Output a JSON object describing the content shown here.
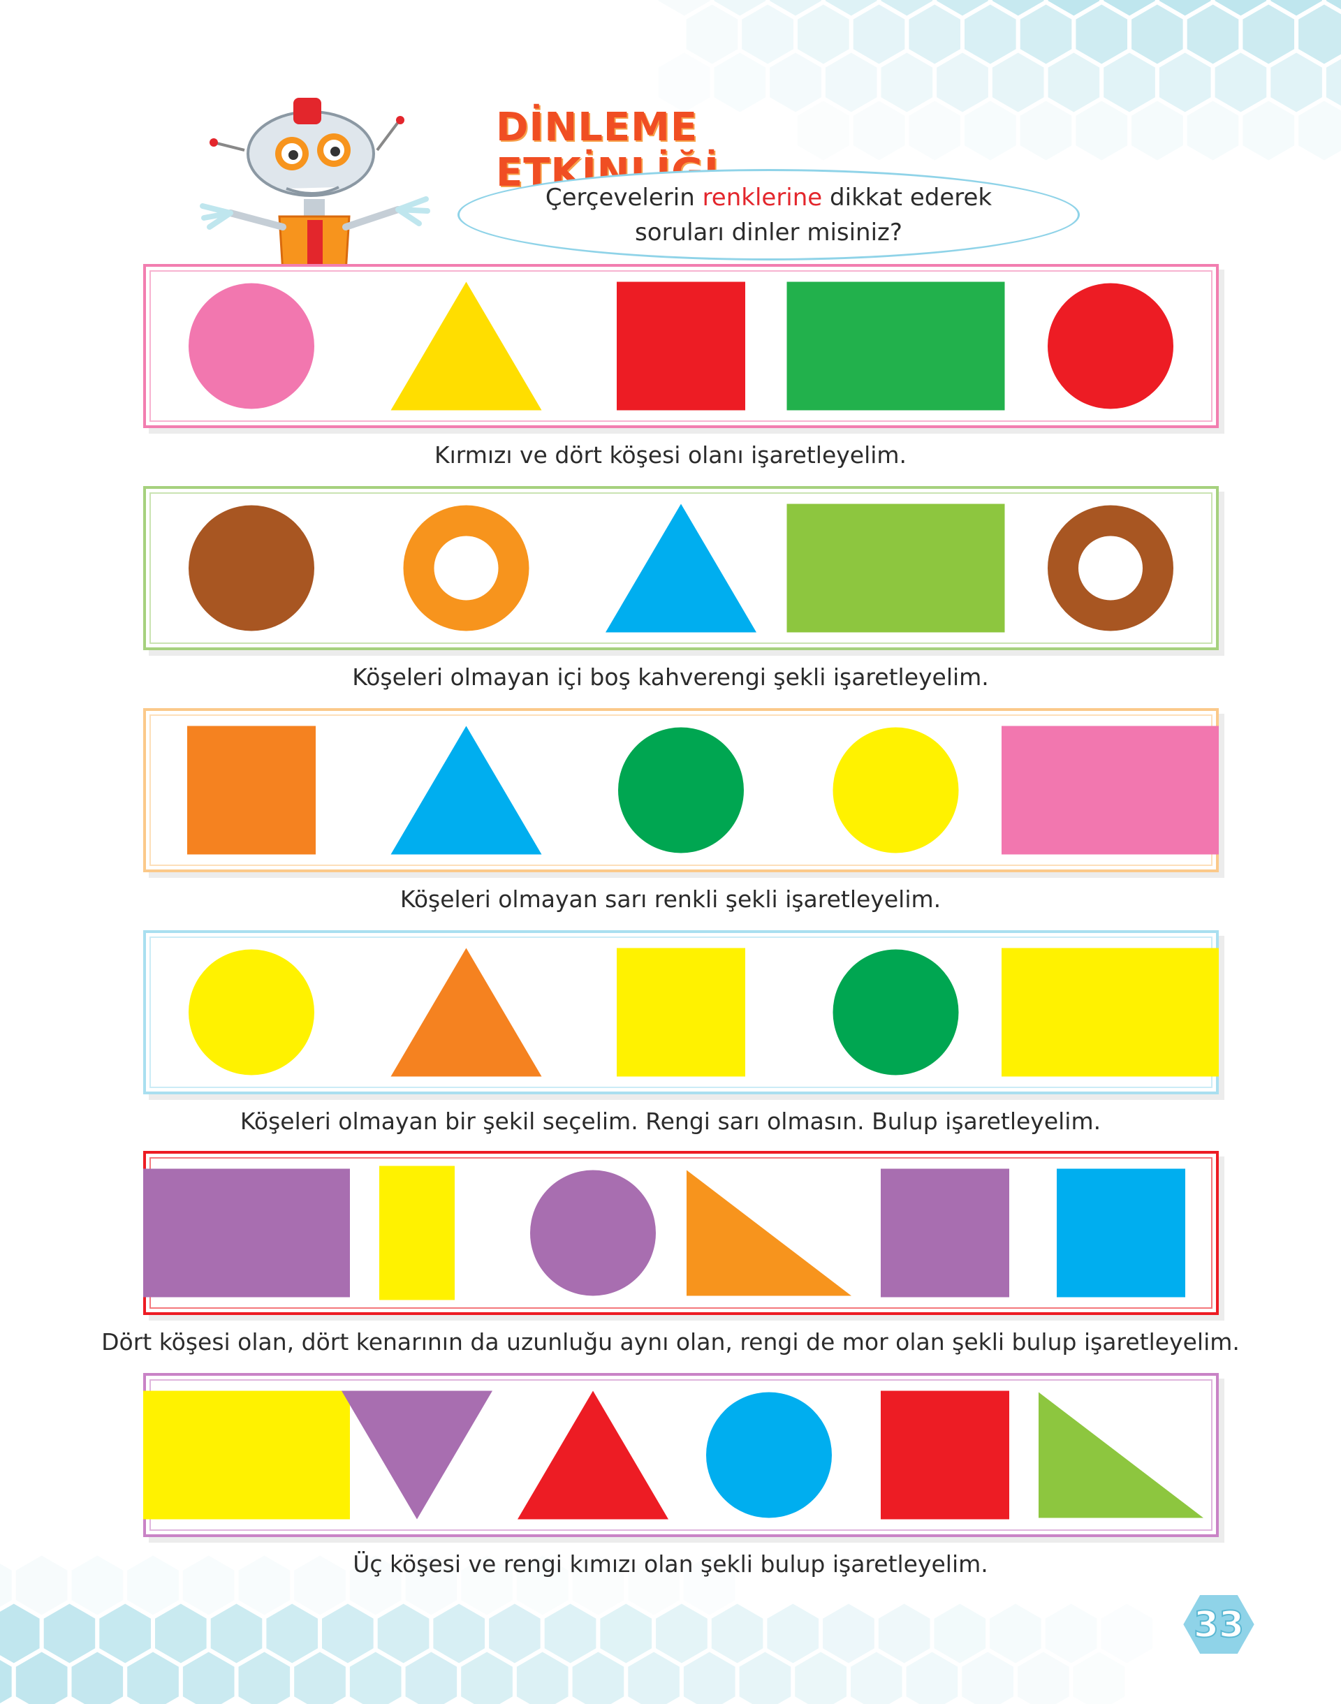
{
  "header": {
    "title": "DİNLEME ETKİNLİĞİ",
    "bubble_line1_before": "Çerçevelerin ",
    "bubble_line1_accent": "renklerine",
    "bubble_line1_after": " dikkat ederek",
    "bubble_line2": "soruları dinler misiniz?"
  },
  "colors": {
    "title": "#f04e23",
    "accent": "#e3262c",
    "hex_background": "#bfe6ee"
  },
  "rows": [
    {
      "frame_color": "#f27eb0",
      "question": "Kırmızı ve dört köşesi olanı işaretleyelim.",
      "shapes": [
        {
          "type": "circle",
          "color": "#f277af"
        },
        {
          "type": "triangle",
          "color": "#ffde00"
        },
        {
          "type": "square",
          "color": "#ed1c24"
        },
        {
          "type": "rectangle",
          "color": "#22b14c"
        },
        {
          "type": "circle",
          "color": "#ed1c24"
        }
      ]
    },
    {
      "frame_color": "#a6d17e",
      "question": "Köşeleri olmayan içi boş kahverengi şekli işaretleyelim.",
      "shapes": [
        {
          "type": "circle",
          "color": "#a85622"
        },
        {
          "type": "ring",
          "color": "#f7941d"
        },
        {
          "type": "triangle",
          "color": "#00aeef"
        },
        {
          "type": "rectangle",
          "color": "#8dc63f"
        },
        {
          "type": "ring",
          "color": "#a85622"
        }
      ]
    },
    {
      "frame_color": "#fbc98a",
      "question": "Köşeleri olmayan sarı renkli şekli işaretleyelim.",
      "shapes": [
        {
          "type": "square",
          "color": "#f58220"
        },
        {
          "type": "triangle",
          "color": "#00aeef"
        },
        {
          "type": "circle",
          "color": "#00a651"
        },
        {
          "type": "circle",
          "color": "#fff200"
        },
        {
          "type": "rectangle",
          "color": "#f277af"
        }
      ]
    },
    {
      "frame_color": "#a9dff0",
      "question": "Köşeleri olmayan bir şekil seçelim. Rengi sarı olmasın. Bulup işaretleyelim.",
      "shapes": [
        {
          "type": "circle",
          "color": "#fff200"
        },
        {
          "type": "triangle",
          "color": "#f58220"
        },
        {
          "type": "square",
          "color": "#fff200"
        },
        {
          "type": "circle",
          "color": "#00a651"
        },
        {
          "type": "rectangle",
          "color": "#fff200"
        }
      ]
    },
    {
      "frame_color": "#ed1c24",
      "question": "Dört köşesi olan, dört kenarının da uzunluğu aynı olan, rengi de mor olan şekli bulup işaretleyelim.",
      "shapes": [
        {
          "type": "rectangle",
          "color": "#a86eb0"
        },
        {
          "type": "tall-rectangle",
          "color": "#fff200"
        },
        {
          "type": "circle",
          "color": "#a86eb0"
        },
        {
          "type": "right-triangle",
          "color": "#f7941d"
        },
        {
          "type": "square",
          "color": "#a86eb0"
        },
        {
          "type": "square",
          "color": "#00aeef"
        }
      ]
    },
    {
      "frame_color": "#c983c6",
      "question": "Üç köşesi ve rengi kımızı olan şekli bulup işaretleyelim.",
      "shapes": [
        {
          "type": "rectangle",
          "color": "#fff200"
        },
        {
          "type": "inverted-triangle",
          "color": "#a86eb0"
        },
        {
          "type": "triangle",
          "color": "#ed1c24"
        },
        {
          "type": "circle",
          "color": "#00aeef"
        },
        {
          "type": "square",
          "color": "#ed1c24"
        },
        {
          "type": "right-triangle",
          "color": "#8dc63f"
        }
      ]
    }
  ],
  "footer": {
    "page_number": "33"
  }
}
